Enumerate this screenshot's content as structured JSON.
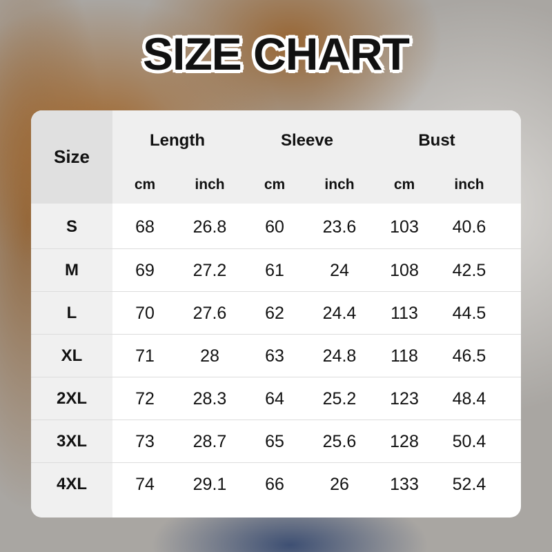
{
  "title": "SIZE CHART",
  "table": {
    "size_header": "Size",
    "groups": [
      "Length",
      "Sleeve",
      "Bust"
    ],
    "units": [
      "cm",
      "inch",
      "cm",
      "inch",
      "cm",
      "inch"
    ],
    "rows": [
      [
        "S",
        "68",
        "26.8",
        "60",
        "23.6",
        "103",
        "40.6"
      ],
      [
        "M",
        "69",
        "27.2",
        "61",
        "24",
        "108",
        "42.5"
      ],
      [
        "L",
        "70",
        "27.6",
        "62",
        "24.4",
        "113",
        "44.5"
      ],
      [
        "XL",
        "71",
        "28",
        "63",
        "24.8",
        "118",
        "46.5"
      ],
      [
        "2XL",
        "72",
        "28.3",
        "64",
        "25.2",
        "123",
        "48.4"
      ],
      [
        "3XL",
        "73",
        "28.7",
        "65",
        "25.6",
        "128",
        "50.4"
      ],
      [
        "4XL",
        "74",
        "29.1",
        "66",
        "26",
        "133",
        "52.4"
      ]
    ]
  }
}
